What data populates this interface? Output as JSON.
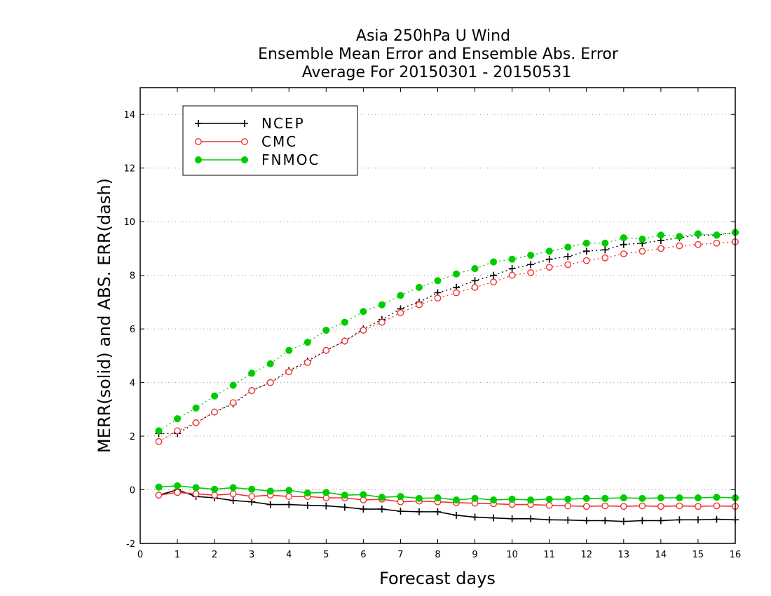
{
  "chart_data": {
    "type": "line",
    "title_lines": [
      "Asia 250hPa U Wind",
      "Ensemble Mean Error and Ensemble Abs. Error",
      "Average For 20150301 - 20150531"
    ],
    "xlabel": "Forecast days",
    "ylabel": "MERR(solid) and ABS. ERR(dash)",
    "xlim": [
      0,
      16
    ],
    "ylim": [
      -2,
      15
    ],
    "xticks": [
      "0",
      "1",
      "2",
      "3",
      "4",
      "5",
      "6",
      "7",
      "8",
      "9",
      "10",
      "11",
      "12",
      "13",
      "14",
      "15",
      "16"
    ],
    "yticks": [
      "-2",
      "0",
      "2",
      "4",
      "6",
      "8",
      "10",
      "12",
      "14"
    ],
    "grid": "horizontal dotted",
    "legend_position": "top-left",
    "x": [
      0.5,
      1,
      1.5,
      2,
      2.5,
      3,
      3.5,
      4,
      4.5,
      5,
      5.5,
      6,
      6.5,
      7,
      7.5,
      8,
      8.5,
      9,
      9.5,
      10,
      10.5,
      11,
      11.5,
      12,
      12.5,
      13,
      13.5,
      14,
      14.5,
      15,
      15.5,
      16
    ],
    "series": [
      {
        "name": "NCEP",
        "color": "#000000",
        "marker": "plus",
        "merr": [
          -0.2,
          0.0,
          -0.25,
          -0.3,
          -0.4,
          -0.45,
          -0.55,
          -0.55,
          -0.58,
          -0.6,
          -0.65,
          -0.72,
          -0.72,
          -0.8,
          -0.82,
          -0.82,
          -0.95,
          -1.02,
          -1.05,
          -1.08,
          -1.08,
          -1.12,
          -1.13,
          -1.15,
          -1.15,
          -1.18,
          -1.15,
          -1.15,
          -1.12,
          -1.12,
          -1.1,
          -1.12
        ],
        "abs_err": [
          2.1,
          2.1,
          2.5,
          2.9,
          3.2,
          3.7,
          4.0,
          4.45,
          4.8,
          5.2,
          5.55,
          6.0,
          6.35,
          6.75,
          7.0,
          7.35,
          7.55,
          7.8,
          8.0,
          8.25,
          8.4,
          8.6,
          8.7,
          8.9,
          8.95,
          9.15,
          9.2,
          9.3,
          9.4,
          9.5,
          9.5,
          9.6
        ]
      },
      {
        "name": "CMC",
        "color": "#ee3333",
        "marker": "open-circle",
        "merr": [
          -0.2,
          -0.1,
          -0.15,
          -0.2,
          -0.15,
          -0.25,
          -0.2,
          -0.25,
          -0.25,
          -0.3,
          -0.3,
          -0.38,
          -0.35,
          -0.45,
          -0.42,
          -0.45,
          -0.48,
          -0.5,
          -0.52,
          -0.55,
          -0.55,
          -0.58,
          -0.6,
          -0.62,
          -0.6,
          -0.62,
          -0.6,
          -0.62,
          -0.6,
          -0.62,
          -0.6,
          -0.62
        ],
        "abs_err": [
          1.8,
          2.2,
          2.5,
          2.9,
          3.25,
          3.7,
          4.0,
          4.4,
          4.75,
          5.2,
          5.55,
          5.95,
          6.25,
          6.6,
          6.9,
          7.15,
          7.35,
          7.55,
          7.75,
          8.0,
          8.1,
          8.3,
          8.4,
          8.55,
          8.65,
          8.8,
          8.9,
          9.0,
          9.1,
          9.15,
          9.2,
          9.25
        ]
      },
      {
        "name": "FNMOC",
        "color": "#00cc00",
        "marker": "filled-circle",
        "merr": [
          0.1,
          0.15,
          0.08,
          0.02,
          0.08,
          0.02,
          -0.05,
          -0.02,
          -0.12,
          -0.1,
          -0.2,
          -0.18,
          -0.28,
          -0.25,
          -0.32,
          -0.3,
          -0.38,
          -0.32,
          -0.38,
          -0.35,
          -0.38,
          -0.35,
          -0.35,
          -0.32,
          -0.32,
          -0.3,
          -0.32,
          -0.3,
          -0.3,
          -0.3,
          -0.28,
          -0.3
        ],
        "abs_err": [
          2.2,
          2.65,
          3.05,
          3.5,
          3.9,
          4.35,
          4.7,
          5.2,
          5.5,
          5.95,
          6.25,
          6.65,
          6.9,
          7.25,
          7.55,
          7.8,
          8.05,
          8.25,
          8.5,
          8.6,
          8.75,
          8.9,
          9.05,
          9.2,
          9.2,
          9.4,
          9.35,
          9.5,
          9.45,
          9.55,
          9.5,
          9.6
        ]
      }
    ]
  }
}
